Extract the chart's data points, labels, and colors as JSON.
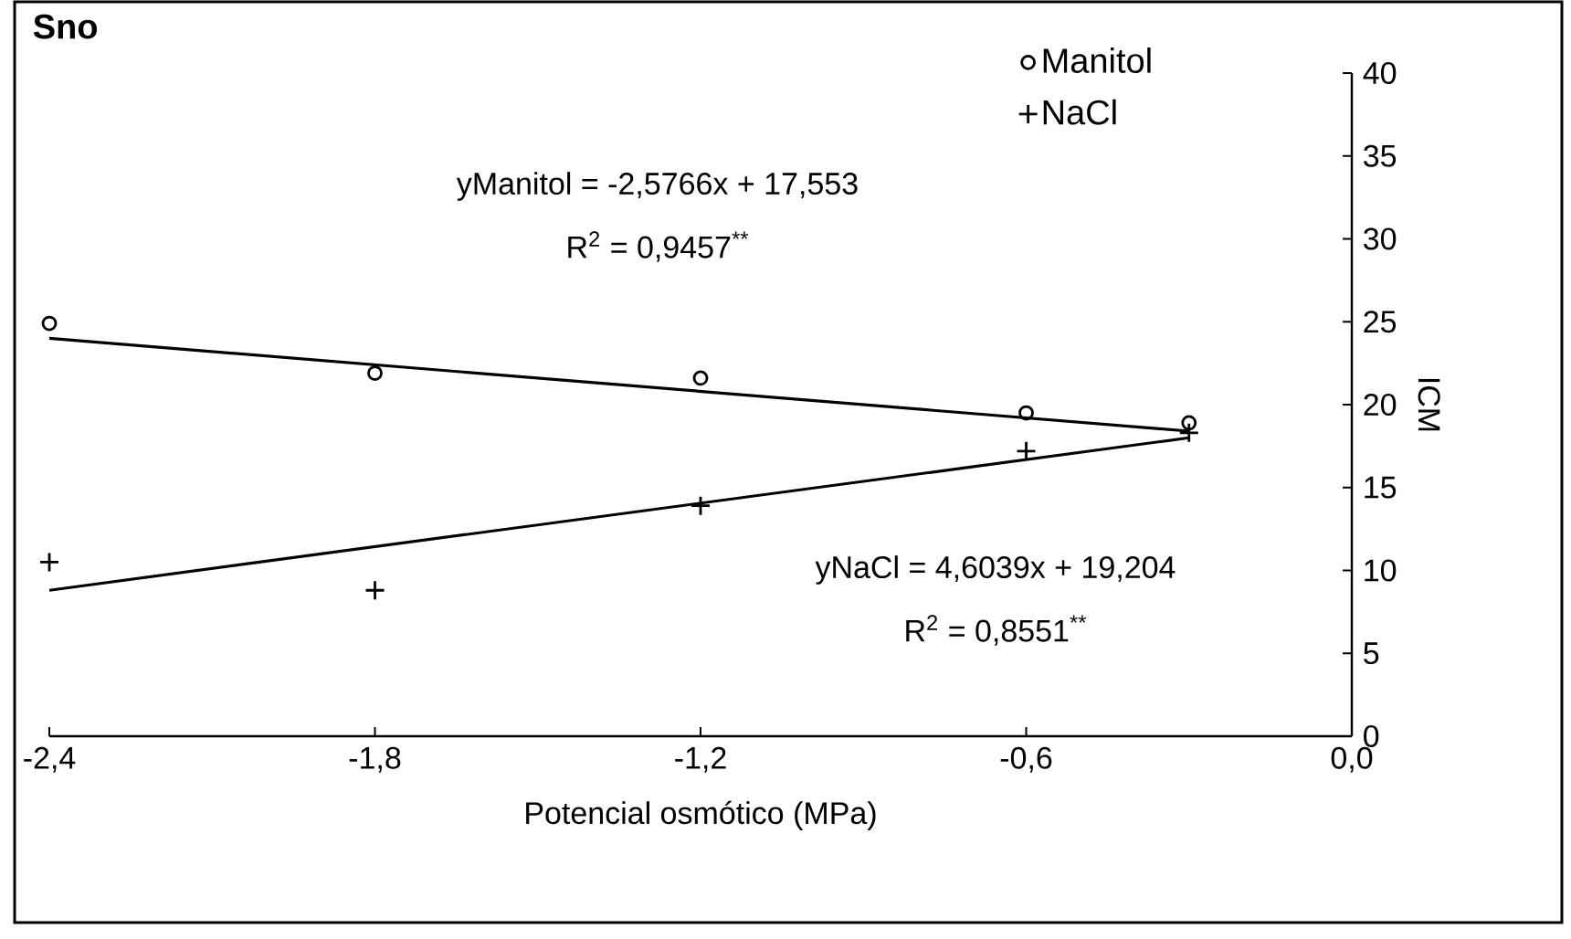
{
  "chart_data": {
    "type": "scatter",
    "title": "Sno",
    "xlabel": "Potencial osmótico (MPa)",
    "ylabel": "ICM",
    "xlim": [
      -2.4,
      0
    ],
    "xticks": [
      {
        "value": -2.4,
        "label": "-2,4"
      },
      {
        "value": -1.8,
        "label": "-1,8"
      },
      {
        "value": -1.2,
        "label": "-1,2"
      },
      {
        "value": -0.6,
        "label": "-0,6"
      },
      {
        "value": 0,
        "label": "0,0"
      }
    ],
    "ylim": [
      0,
      40
    ],
    "yticks": [
      0,
      5,
      10,
      15,
      20,
      25,
      30,
      35,
      40
    ],
    "grid": false,
    "legend": "top right",
    "series": [
      {
        "name": "Manitol",
        "color": "#000000",
        "marker": "circle",
        "x": [
          -2.4,
          -1.8,
          -1.2,
          -0.6,
          -0.3
        ],
        "values": [
          24.9,
          21.9,
          21.6,
          19.5,
          18.9
        ]
      },
      {
        "name": "NaCl",
        "color": "#000000",
        "marker": "cross",
        "x": [
          -2.4,
          -1.8,
          -1.2,
          -0.6,
          -0.3
        ],
        "values": [
          10.5,
          8.8,
          13.9,
          17.2,
          18.3
        ]
      },
      {
        "type": "line",
        "color": "#000000",
        "marker": "none",
        "line_style": "solid",
        "x": [
          -2.4,
          -0.3
        ],
        "values": [
          24.0,
          18.4
        ]
      },
      {
        "type": "line",
        "color": "#000000",
        "marker": "none",
        "line_style": "solid",
        "x": [
          -2.4,
          -0.3
        ],
        "values": [
          8.8,
          18.0
        ]
      }
    ],
    "annotations": [
      "yManitol = -2,5766x + 17,553",
      "R$^{2}$ = 0,9457$^{**}$",
      "yNaCl = 4,6039x + 19,204",
      "R$^{2}$ = 0,8551$^{**}$"
    ]
  }
}
